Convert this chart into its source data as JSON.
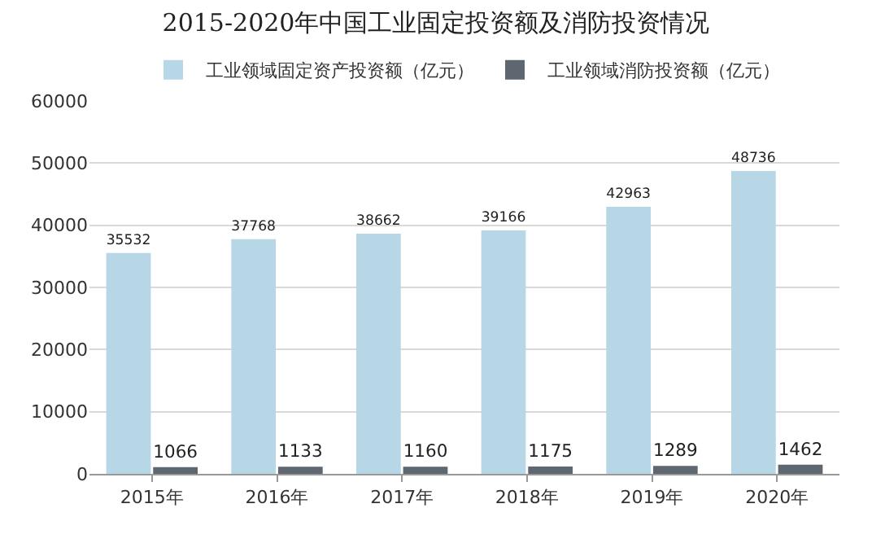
{
  "chart_data": {
    "type": "bar",
    "title": "2015-2020年中国工业固定投资额及消防投资情况",
    "categories": [
      "2015年",
      "2016年",
      "2017年",
      "2018年",
      "2019年",
      "2020年"
    ],
    "series": [
      {
        "name": "工业领域固定资产投资额（亿元）",
        "color": "#b7d6e6",
        "values": [
          35532,
          37768,
          38662,
          39166,
          42963,
          48736
        ]
      },
      {
        "name": "工业领域消防投资额（亿元）",
        "color": "#5e6670",
        "values": [
          1066,
          1133,
          1160,
          1175,
          1289,
          1462
        ]
      }
    ],
    "ylim": [
      0,
      60000
    ],
    "yticks": [
      0,
      10000,
      20000,
      30000,
      40000,
      50000,
      60000
    ],
    "grid": "y",
    "legend": "top",
    "data_labels": true
  }
}
